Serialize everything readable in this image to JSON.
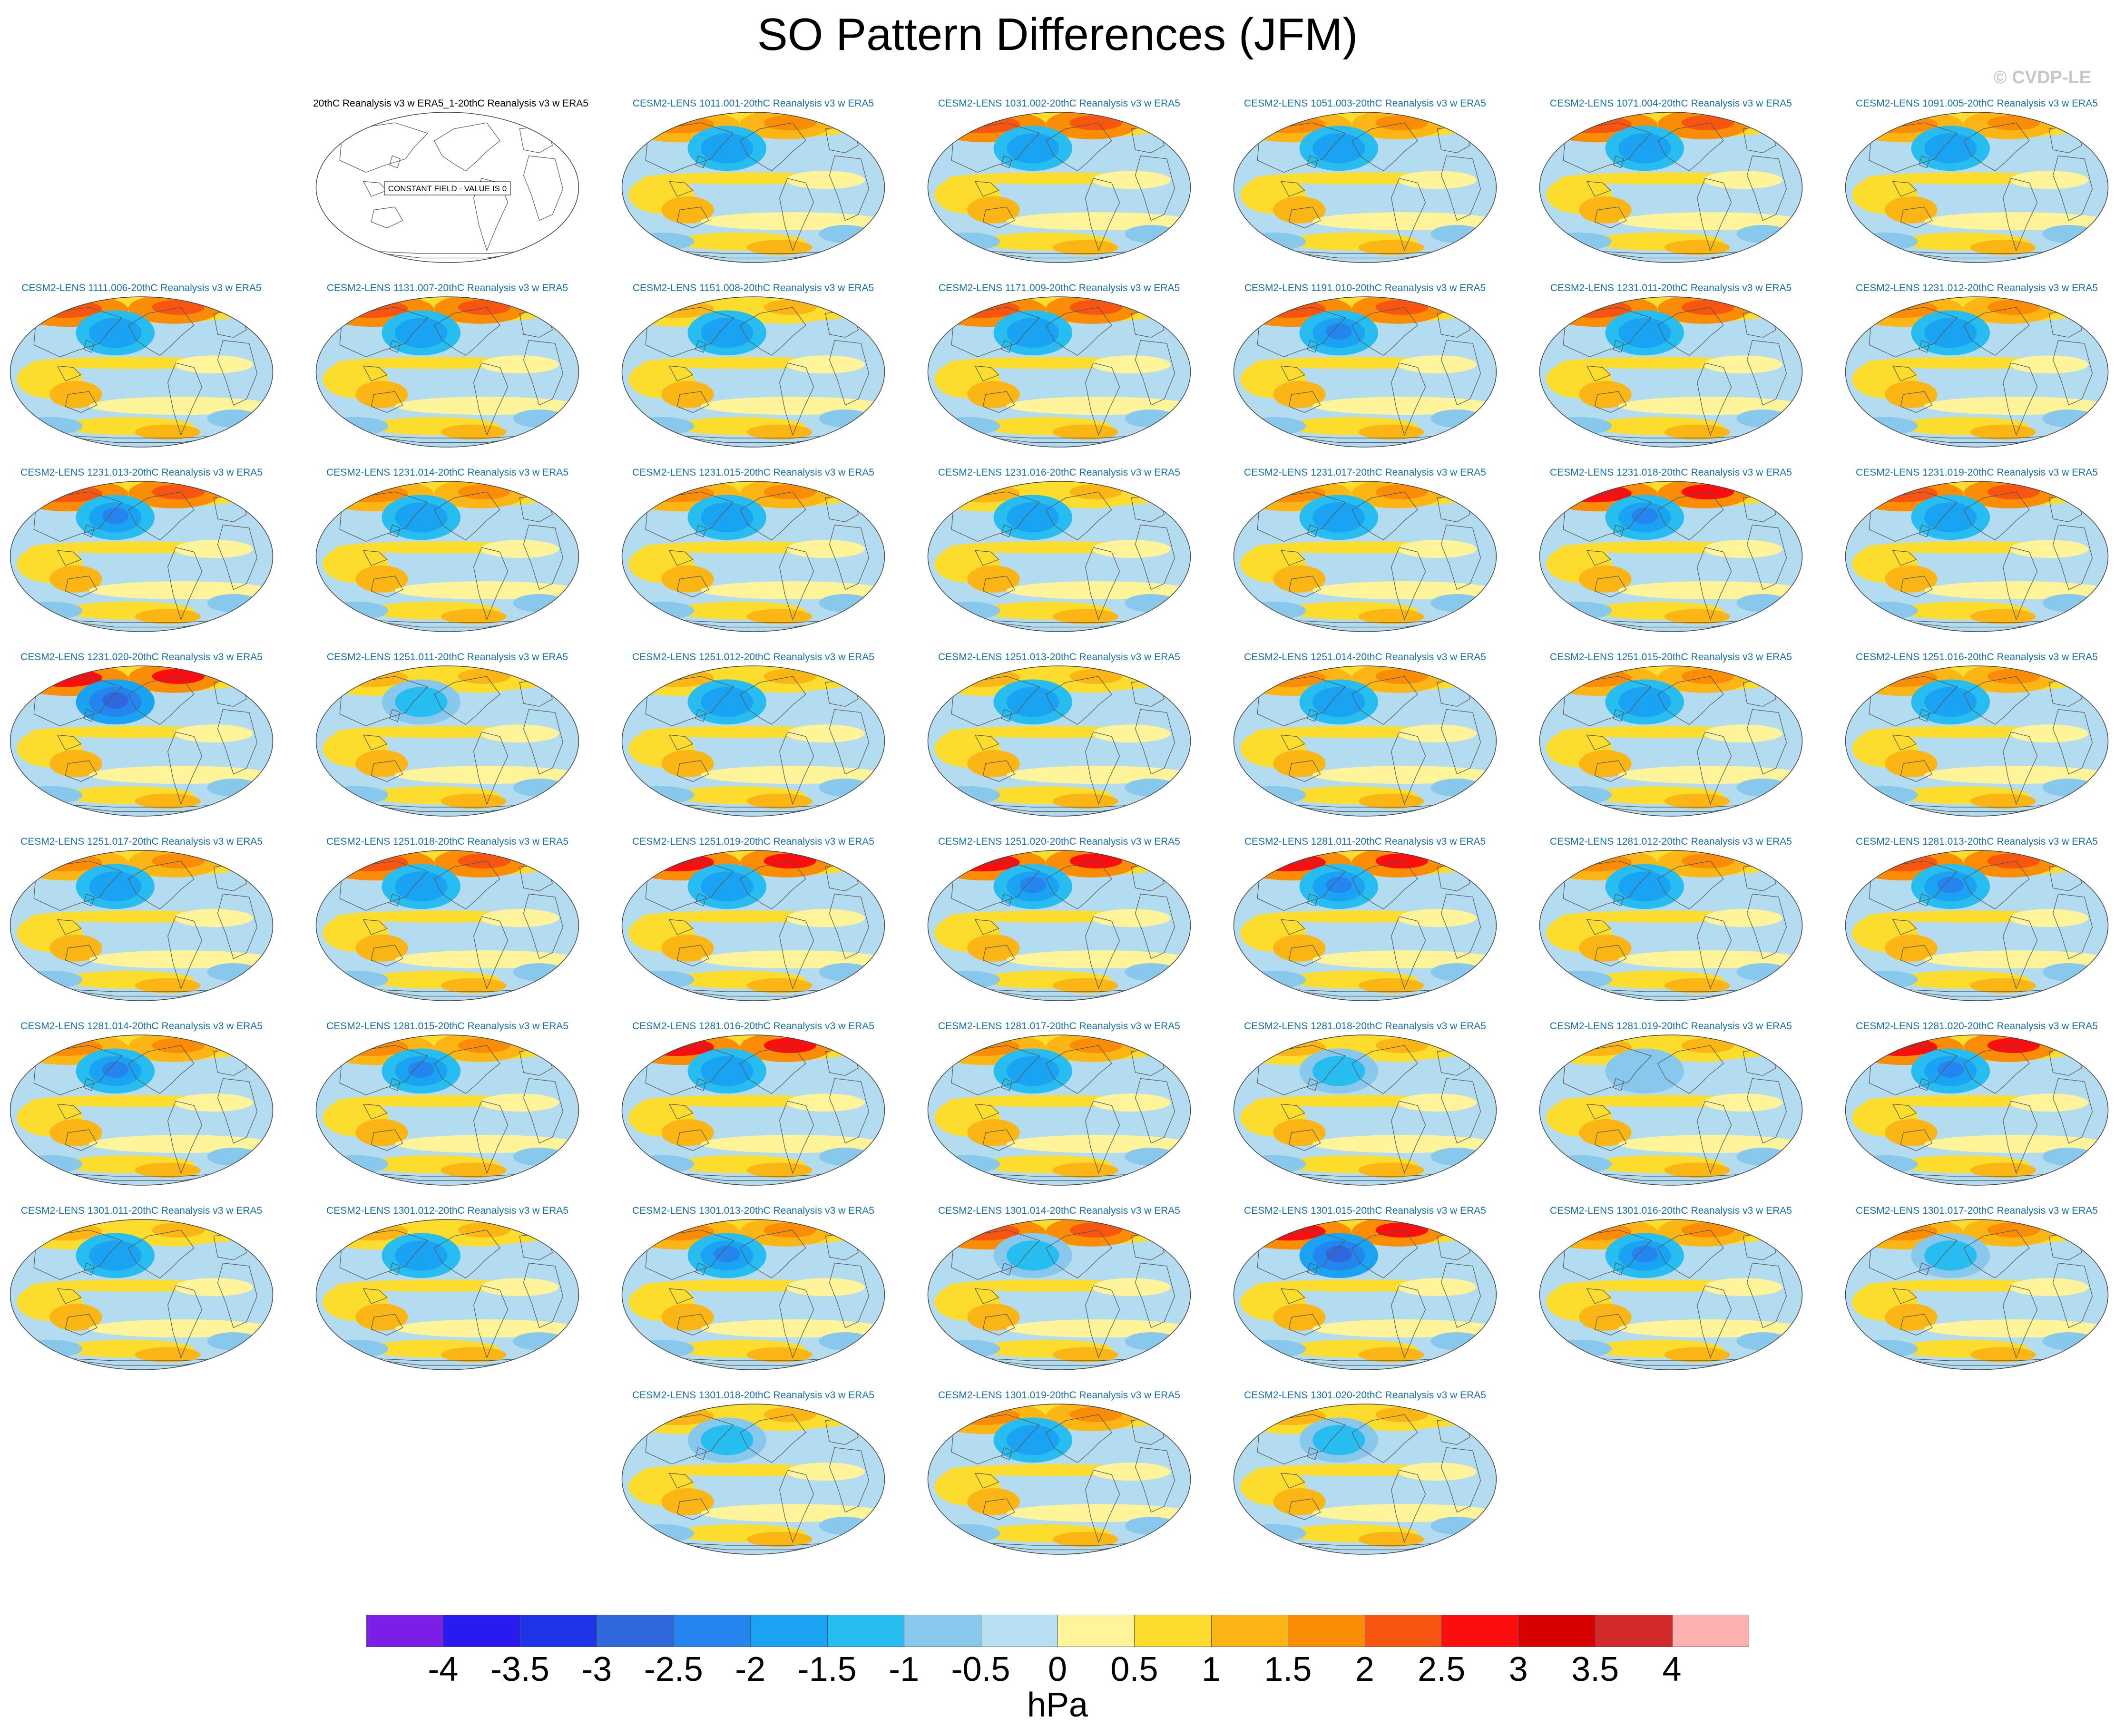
{
  "title": "SO Pattern Differences (JFM)",
  "credit": "© CVDP-LE",
  "constant_field_text": "CONSTANT FIELD - VALUE IS 0",
  "colors": {
    "model_title": "#1a6ea5",
    "obs_title": "#000000",
    "ocean_neutral": "#b4dcf0",
    "coast": "#555555"
  },
  "chart_data": {
    "type": "map-panels",
    "title": "SO Pattern Differences (JFM)",
    "colorbar": {
      "units": "hPa",
      "ticks": [
        "-4",
        "-3.5",
        "-3",
        "-2.5",
        "-2",
        "-1.5",
        "-1",
        "-0.5",
        "0",
        "0.5",
        "1",
        "1.5",
        "2",
        "2.5",
        "3",
        "3.5",
        "4"
      ],
      "colors": [
        "#7b1fe6",
        "#2a1af2",
        "#1f34e6",
        "#2f68dc",
        "#2585ee",
        "#1aa3f2",
        "#27bdf0",
        "#87c8ec",
        "#b6dff2",
        "#fff49a",
        "#fcdc2c",
        "#fbb514",
        "#fb8c05",
        "#f85610",
        "#fb0e0e",
        "#d90000",
        "#d22a2a",
        "#ffb0b0"
      ]
    },
    "panels": [
      {
        "label": "20thC Reanalysis v3 w ERA5_1-20thC Reanalysis v3 w ERA5",
        "constant": true
      },
      {
        "label": "CESM2-LENS 1011.001-20thC Reanalysis v3 w ERA5",
        "nh_high": 1.5,
        "al_low": -2.0
      },
      {
        "label": "CESM2-LENS 1031.002-20thC Reanalysis v3 w ERA5",
        "nh_high": 2.0,
        "al_low": -2.0
      },
      {
        "label": "CESM2-LENS 1051.003-20thC Reanalysis v3 w ERA5",
        "nh_high": 1.5,
        "al_low": -2.0
      },
      {
        "label": "CESM2-LENS 1071.004-20thC Reanalysis v3 w ERA5",
        "nh_high": 2.0,
        "al_low": -2.0
      },
      {
        "label": "CESM2-LENS 1091.005-20thC Reanalysis v3 w ERA5",
        "nh_high": 1.5,
        "al_low": -2.0
      },
      {
        "label": "CESM2-LENS 1111.006-20thC Reanalysis v3 w ERA5",
        "nh_high": 2.0,
        "al_low": -2.0
      },
      {
        "label": "CESM2-LENS 1131.007-20thC Reanalysis v3 w ERA5",
        "nh_high": 2.0,
        "al_low": -2.0
      },
      {
        "label": "CESM2-LENS 1151.008-20thC Reanalysis v3 w ERA5",
        "nh_high": 1.0,
        "al_low": -2.0
      },
      {
        "label": "CESM2-LENS 1171.009-20thC Reanalysis v3 w ERA5",
        "nh_high": 2.0,
        "al_low": -2.0
      },
      {
        "label": "CESM2-LENS 1191.010-20thC Reanalysis v3 w ERA5",
        "nh_high": 2.0,
        "al_low": -2.5
      },
      {
        "label": "CESM2-LENS 1231.011-20thC Reanalysis v3 w ERA5",
        "nh_high": 2.0,
        "al_low": -2.0
      },
      {
        "label": "CESM2-LENS 1231.012-20thC Reanalysis v3 w ERA5",
        "nh_high": 1.5,
        "al_low": -2.0
      },
      {
        "label": "CESM2-LENS 1231.013-20thC Reanalysis v3 w ERA5",
        "nh_high": 2.0,
        "al_low": -2.5
      },
      {
        "label": "CESM2-LENS 1231.014-20thC Reanalysis v3 w ERA5",
        "nh_high": 1.5,
        "al_low": -2.0
      },
      {
        "label": "CESM2-LENS 1231.015-20thC Reanalysis v3 w ERA5",
        "nh_high": 1.5,
        "al_low": -2.0
      },
      {
        "label": "CESM2-LENS 1231.016-20thC Reanalysis v3 w ERA5",
        "nh_high": 1.0,
        "al_low": -2.0
      },
      {
        "label": "CESM2-LENS 1231.017-20thC Reanalysis v3 w ERA5",
        "nh_high": 1.5,
        "al_low": -2.0
      },
      {
        "label": "CESM2-LENS 1231.018-20thC Reanalysis v3 w ERA5",
        "nh_high": 2.5,
        "al_low": -2.5
      },
      {
        "label": "CESM2-LENS 1231.019-20thC Reanalysis v3 w ERA5",
        "nh_high": 2.0,
        "al_low": -2.0
      },
      {
        "label": "CESM2-LENS 1231.020-20thC Reanalysis v3 w ERA5",
        "nh_high": 2.5,
        "al_low": -3.0
      },
      {
        "label": "CESM2-LENS 1251.011-20thC Reanalysis v3 w ERA5",
        "nh_high": 1.0,
        "al_low": -1.5
      },
      {
        "label": "CESM2-LENS 1251.012-20thC Reanalysis v3 w ERA5",
        "nh_high": 1.0,
        "al_low": -2.0
      },
      {
        "label": "CESM2-LENS 1251.013-20thC Reanalysis v3 w ERA5",
        "nh_high": 1.0,
        "al_low": -2.0
      },
      {
        "label": "CESM2-LENS 1251.014-20thC Reanalysis v3 w ERA5",
        "nh_high": 1.5,
        "al_low": -2.0
      },
      {
        "label": "CESM2-LENS 1251.015-20thC Reanalysis v3 w ERA5",
        "nh_high": 1.5,
        "al_low": -2.0
      },
      {
        "label": "CESM2-LENS 1251.016-20thC Reanalysis v3 w ERA5",
        "nh_high": 1.5,
        "al_low": -2.0
      },
      {
        "label": "CESM2-LENS 1251.017-20thC Reanalysis v3 w ERA5",
        "nh_high": 1.5,
        "al_low": -2.0
      },
      {
        "label": "CESM2-LENS 1251.018-20thC Reanalysis v3 w ERA5",
        "nh_high": 2.0,
        "al_low": -2.0
      },
      {
        "label": "CESM2-LENS 1251.019-20thC Reanalysis v3 w ERA5",
        "nh_high": 2.5,
        "al_low": -2.0
      },
      {
        "label": "CESM2-LENS 1251.020-20thC Reanalysis v3 w ERA5",
        "nh_high": 2.5,
        "al_low": -2.5
      },
      {
        "label": "CESM2-LENS 1281.011-20thC Reanalysis v3 w ERA5",
        "nh_high": 2.5,
        "al_low": -2.5
      },
      {
        "label": "CESM2-LENS 1281.012-20thC Reanalysis v3 w ERA5",
        "nh_high": 1.5,
        "al_low": -2.0
      },
      {
        "label": "CESM2-LENS 1281.013-20thC Reanalysis v3 w ERA5",
        "nh_high": 2.0,
        "al_low": -2.5
      },
      {
        "label": "CESM2-LENS 1281.014-20thC Reanalysis v3 w ERA5",
        "nh_high": 1.5,
        "al_low": -2.5
      },
      {
        "label": "CESM2-LENS 1281.015-20thC Reanalysis v3 w ERA5",
        "nh_high": 1.5,
        "al_low": -2.5
      },
      {
        "label": "CESM2-LENS 1281.016-20thC Reanalysis v3 w ERA5",
        "nh_high": 2.5,
        "al_low": -2.0
      },
      {
        "label": "CESM2-LENS 1281.017-20thC Reanalysis v3 w ERA5",
        "nh_high": 1.5,
        "al_low": -2.0
      },
      {
        "label": "CESM2-LENS 1281.018-20thC Reanalysis v3 w ERA5",
        "nh_high": 1.0,
        "al_low": -1.5
      },
      {
        "label": "CESM2-LENS 1281.019-20thC Reanalysis v3 w ERA5",
        "nh_high": 1.0,
        "al_low": -1.0
      },
      {
        "label": "CESM2-LENS 1281.020-20thC Reanalysis v3 w ERA5",
        "nh_high": 2.5,
        "al_low": -2.5
      },
      {
        "label": "CESM2-LENS 1301.011-20thC Reanalysis v3 w ERA5",
        "nh_high": 1.0,
        "al_low": -2.0
      },
      {
        "label": "CESM2-LENS 1301.012-20thC Reanalysis v3 w ERA5",
        "nh_high": 1.0,
        "al_low": -2.0
      },
      {
        "label": "CESM2-LENS 1301.013-20thC Reanalysis v3 w ERA5",
        "nh_high": 1.5,
        "al_low": -2.5
      },
      {
        "label": "CESM2-LENS 1301.014-20thC Reanalysis v3 w ERA5",
        "nh_high": 2.0,
        "al_low": -1.5
      },
      {
        "label": "CESM2-LENS 1301.015-20thC Reanalysis v3 w ERA5",
        "nh_high": 2.5,
        "al_low": -3.0
      },
      {
        "label": "CESM2-LENS 1301.016-20thC Reanalysis v3 w ERA5",
        "nh_high": 1.5,
        "al_low": -2.5
      },
      {
        "label": "CESM2-LENS 1301.017-20thC Reanalysis v3 w ERA5",
        "nh_high": 1.5,
        "al_low": -1.5
      },
      {
        "label": "CESM2-LENS 1301.018-20thC Reanalysis v3 w ERA5",
        "nh_high": 1.0,
        "al_low": -1.5
      },
      {
        "label": "CESM2-LENS 1301.019-20thC Reanalysis v3 w ERA5",
        "nh_high": 1.5,
        "al_low": -2.0
      },
      {
        "label": "CESM2-LENS 1301.020-20thC Reanalysis v3 w ERA5",
        "nh_high": 1.0,
        "al_low": -1.5
      }
    ]
  }
}
